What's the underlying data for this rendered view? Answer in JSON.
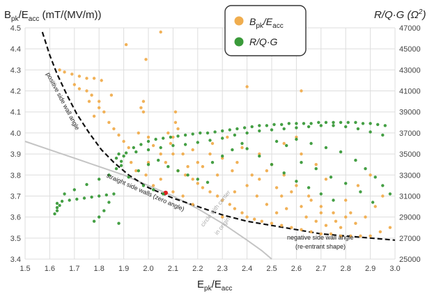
{
  "chart_data": {
    "type": "scatter",
    "title": "",
    "left_axis_label": "Bpk/Eacc (mT/(MV/m))",
    "left_axis_label_parts": [
      "B",
      "pk",
      "/E",
      "acc",
      " (mT/(MV/m))"
    ],
    "right_axis_label": "R/Q·G (Ω²)",
    "right_axis_label_parts": [
      "R/Q·G (Ω",
      "2",
      ")"
    ],
    "x_axis_label": "Epk/Eacc",
    "x_axis_label_parts": [
      "E",
      "pk",
      "/E",
      "acc"
    ],
    "xlim": [
      1.5,
      3.0
    ],
    "ylim_left": [
      3.4,
      4.5
    ],
    "ylim_right": [
      25000,
      47000
    ],
    "x_ticks": [
      "1.5",
      "1.6",
      "1.7",
      "1.8",
      "1.9",
      "2.0",
      "2.1",
      "2.2",
      "2.3",
      "2.4",
      "2.5",
      "2.6",
      "2.7",
      "2.8",
      "2.9",
      "3.0"
    ],
    "y_left_ticks": [
      "3.4",
      "3.5",
      "3.6",
      "3.7",
      "3.8",
      "3.9",
      "4.0",
      "4.1",
      "4.2",
      "4.3",
      "4.4",
      "4.5"
    ],
    "y_right_ticks": [
      "25000",
      "27000",
      "29000",
      "31000",
      "33000",
      "35000",
      "37000",
      "39000",
      "41000",
      "43000",
      "45000",
      "47000"
    ],
    "grid": true,
    "legend_position": "top-center",
    "colors": {
      "bpk": "#f0ad4e",
      "rqg": "#3a9a3a",
      "boundary": "#111111",
      "circle": "#c4c4c4",
      "grid": "#dddddd"
    },
    "series": [
      {
        "name": "Bpk/Eacc",
        "name_parts": [
          "B",
          "pk",
          "/E",
          "acc"
        ],
        "axis": "left",
        "color": "#f0ad4e",
        "points": [
          [
            1.64,
            4.3
          ],
          [
            1.66,
            4.29
          ],
          [
            1.69,
            4.28
          ],
          [
            1.72,
            4.27
          ],
          [
            1.75,
            4.26
          ],
          [
            1.78,
            4.26
          ],
          [
            1.81,
            4.25
          ],
          [
            1.7,
            4.23
          ],
          [
            1.72,
            4.21
          ],
          [
            1.75,
            4.2
          ],
          [
            1.77,
            4.18
          ],
          [
            1.8,
            4.15
          ],
          [
            1.82,
            4.1
          ],
          [
            1.84,
            4.05
          ],
          [
            1.86,
            4.02
          ],
          [
            1.88,
            3.99
          ],
          [
            1.9,
            3.96
          ],
          [
            1.92,
            3.93
          ],
          [
            1.96,
            4.0
          ],
          [
            1.98,
            4.15
          ],
          [
            1.97,
            4.12
          ],
          [
            1.98,
            4.1
          ],
          [
            2.0,
            3.98
          ],
          [
            2.02,
            3.94
          ],
          [
            2.05,
            3.9
          ],
          [
            2.07,
            3.86
          ],
          [
            2.1,
            3.9
          ],
          [
            2.11,
            4.05
          ],
          [
            2.11,
            4.1
          ],
          [
            2.12,
            4.02
          ],
          [
            2.1,
            3.98
          ],
          [
            2.08,
            4.0
          ],
          [
            2.09,
            3.95
          ],
          [
            2.12,
            3.82
          ],
          [
            2.15,
            3.8
          ],
          [
            2.18,
            3.78
          ],
          [
            2.2,
            3.76
          ],
          [
            2.22,
            3.74
          ],
          [
            2.25,
            3.72
          ],
          [
            2.28,
            3.7
          ],
          [
            2.3,
            3.68
          ],
          [
            2.33,
            3.66
          ],
          [
            2.35,
            3.64
          ],
          [
            2.38,
            3.62
          ],
          [
            2.4,
            3.6
          ],
          [
            2.43,
            3.59
          ],
          [
            2.46,
            3.58
          ],
          [
            2.5,
            3.57
          ],
          [
            2.54,
            3.56
          ],
          [
            2.58,
            3.55
          ],
          [
            2.62,
            3.54
          ],
          [
            2.66,
            3.53
          ],
          [
            2.7,
            3.52
          ],
          [
            2.74,
            3.52
          ],
          [
            2.78,
            3.51
          ],
          [
            2.82,
            3.51
          ],
          [
            2.86,
            3.51
          ],
          [
            2.9,
            3.51
          ],
          [
            2.94,
            3.53
          ],
          [
            2.98,
            3.55
          ],
          [
            2.45,
            3.9
          ],
          [
            2.5,
            3.85
          ],
          [
            2.55,
            3.8
          ],
          [
            2.6,
            3.75
          ],
          [
            2.65,
            3.7
          ],
          [
            2.7,
            3.65
          ],
          [
            2.75,
            3.62
          ],
          [
            2.8,
            3.6
          ],
          [
            2.55,
            3.95
          ],
          [
            2.6,
            3.98
          ],
          [
            2.62,
            3.9
          ],
          [
            2.68,
            3.85
          ],
          [
            2.72,
            3.78
          ],
          [
            2.4,
            3.75
          ],
          [
            2.42,
            3.8
          ],
          [
            2.36,
            3.86
          ],
          [
            2.3,
            3.88
          ],
          [
            2.25,
            3.9
          ],
          [
            2.2,
            3.86
          ],
          [
            2.16,
            3.84
          ],
          [
            2.14,
            3.9
          ],
          [
            2.05,
            3.78
          ],
          [
            2.02,
            3.75
          ],
          [
            1.99,
            3.8
          ],
          [
            1.95,
            3.82
          ],
          [
            1.93,
            3.86
          ],
          [
            2.0,
            3.86
          ],
          [
            2.26,
            3.95
          ],
          [
            2.32,
            3.98
          ],
          [
            2.38,
            3.93
          ],
          [
            2.44,
            3.7
          ],
          [
            2.48,
            3.66
          ],
          [
            2.52,
            3.62
          ],
          [
            2.56,
            3.64
          ],
          [
            2.64,
            3.6
          ],
          [
            2.68,
            3.58
          ],
          [
            2.72,
            3.56
          ],
          [
            2.76,
            3.58
          ],
          [
            2.84,
            3.57
          ],
          [
            2.88,
            3.6
          ],
          [
            2.92,
            3.65
          ],
          [
            2.95,
            3.7
          ],
          [
            2.05,
            4.48
          ],
          [
            1.91,
            4.42
          ],
          [
            2.62,
            4.2
          ],
          [
            2.4,
            4.22
          ],
          [
            1.99,
            4.35
          ],
          [
            1.76,
            4.15
          ],
          [
            1.8,
            4.12
          ],
          [
            1.78,
            4.08
          ],
          [
            1.85,
            4.18
          ],
          [
            2.3,
            3.6
          ],
          [
            2.35,
            3.72
          ],
          [
            2.45,
            3.78
          ],
          [
            2.58,
            3.72
          ],
          [
            2.66,
            3.68
          ],
          [
            2.8,
            3.68
          ],
          [
            2.85,
            3.75
          ],
          [
            2.9,
            3.8
          ],
          [
            2.18,
            3.92
          ],
          [
            2.22,
            3.84
          ],
          [
            2.28,
            3.8
          ],
          [
            2.34,
            3.82
          ],
          [
            2.1,
            3.72
          ],
          [
            2.14,
            3.7
          ],
          [
            2.18,
            3.66
          ],
          [
            2.48,
            3.82
          ],
          [
            2.52,
            3.74
          ],
          [
            2.54,
            3.7
          ],
          [
            2.62,
            3.65
          ],
          [
            2.7,
            3.62
          ],
          [
            2.78,
            3.55
          ],
          [
            2.82,
            3.62
          ]
        ]
      },
      {
        "name": "R/Q·G",
        "name_parts": [
          "R/Q·G"
        ],
        "axis": "right",
        "color": "#3a9a3a",
        "points": [
          [
            1.63,
            30300
          ],
          [
            1.65,
            30500
          ],
          [
            1.68,
            30600
          ],
          [
            1.71,
            30700
          ],
          [
            1.74,
            30800
          ],
          [
            1.77,
            30900
          ],
          [
            1.8,
            31000
          ],
          [
            1.83,
            31100
          ],
          [
            1.63,
            29600
          ],
          [
            1.63,
            29900
          ],
          [
            1.64,
            30100
          ],
          [
            1.62,
            29300
          ],
          [
            1.66,
            31200
          ],
          [
            1.7,
            31600
          ],
          [
            1.75,
            32100
          ],
          [
            1.8,
            32600
          ],
          [
            1.84,
            33000
          ],
          [
            1.87,
            33600
          ],
          [
            1.89,
            34300
          ],
          [
            1.91,
            35100
          ],
          [
            1.94,
            35600
          ],
          [
            1.97,
            35900
          ],
          [
            2.0,
            36200
          ],
          [
            2.03,
            36400
          ],
          [
            2.06,
            36500
          ],
          [
            2.09,
            36600
          ],
          [
            2.12,
            36700
          ],
          [
            2.15,
            36800
          ],
          [
            2.18,
            36900
          ],
          [
            2.21,
            37000
          ],
          [
            2.24,
            37000
          ],
          [
            2.27,
            37100
          ],
          [
            2.3,
            37200
          ],
          [
            2.33,
            37300
          ],
          [
            2.36,
            37400
          ],
          [
            2.39,
            37500
          ],
          [
            2.42,
            37600
          ],
          [
            2.45,
            37700
          ],
          [
            2.48,
            37700
          ],
          [
            2.51,
            37800
          ],
          [
            2.54,
            37800
          ],
          [
            2.57,
            37900
          ],
          [
            2.6,
            37900
          ],
          [
            2.63,
            37900
          ],
          [
            2.66,
            37900
          ],
          [
            2.69,
            38000
          ],
          [
            2.72,
            38000
          ],
          [
            2.75,
            38000
          ],
          [
            2.78,
            38000
          ],
          [
            2.81,
            38000
          ],
          [
            2.84,
            38000
          ],
          [
            2.87,
            37900
          ],
          [
            2.9,
            37900
          ],
          [
            2.93,
            37800
          ],
          [
            2.96,
            37700
          ],
          [
            1.9,
            34800
          ],
          [
            1.95,
            35200
          ],
          [
            2.0,
            35400
          ],
          [
            2.05,
            35600
          ],
          [
            2.1,
            35800
          ],
          [
            2.15,
            35900
          ],
          [
            2.2,
            36100
          ],
          [
            2.25,
            36300
          ],
          [
            2.3,
            36500
          ],
          [
            2.35,
            36800
          ],
          [
            2.4,
            37000
          ],
          [
            2.45,
            37200
          ],
          [
            2.5,
            37300
          ],
          [
            2.55,
            37400
          ],
          [
            2.6,
            37500
          ],
          [
            2.65,
            37600
          ],
          [
            2.7,
            37700
          ],
          [
            2.75,
            37700
          ],
          [
            2.8,
            37600
          ],
          [
            2.85,
            37400
          ],
          [
            2.9,
            37100
          ],
          [
            2.95,
            36800
          ],
          [
            2.4,
            35500
          ],
          [
            2.45,
            34800
          ],
          [
            2.5,
            34000
          ],
          [
            2.55,
            33200
          ],
          [
            2.6,
            32400
          ],
          [
            2.65,
            31800
          ],
          [
            2.7,
            31200
          ],
          [
            2.75,
            30600
          ],
          [
            1.92,
            32800
          ],
          [
            1.96,
            33400
          ],
          [
            2.0,
            34000
          ],
          [
            2.04,
            34400
          ],
          [
            2.08,
            33800
          ],
          [
            2.12,
            33400
          ],
          [
            2.16,
            33000
          ],
          [
            2.2,
            32600
          ],
          [
            2.24,
            32300
          ],
          [
            1.86,
            31200
          ],
          [
            1.84,
            30400
          ],
          [
            1.82,
            29600
          ],
          [
            1.8,
            29000
          ],
          [
            1.78,
            28600
          ],
          [
            1.88,
            28400
          ],
          [
            1.98,
            32000
          ],
          [
            2.02,
            31600
          ],
          [
            2.06,
            31200
          ],
          [
            2.26,
            34200
          ],
          [
            2.3,
            34800
          ],
          [
            2.34,
            35400
          ],
          [
            2.38,
            36000
          ],
          [
            2.6,
            36400
          ],
          [
            2.66,
            36000
          ],
          [
            2.72,
            35600
          ],
          [
            2.78,
            35200
          ],
          [
            2.84,
            34400
          ],
          [
            2.88,
            33600
          ],
          [
            2.92,
            32800
          ],
          [
            2.95,
            32000
          ],
          [
            2.98,
            31200
          ],
          [
            1.88,
            35000
          ],
          [
            1.87,
            34600
          ],
          [
            1.89,
            33900
          ],
          [
            2.52,
            36200
          ],
          [
            2.56,
            35800
          ],
          [
            2.62,
            34200
          ],
          [
            2.68,
            33600
          ],
          [
            2.74,
            32800
          ],
          [
            2.8,
            32200
          ],
          [
            2.86,
            31400
          ],
          [
            2.91,
            30400
          ]
        ]
      }
    ],
    "boundary_curve": {
      "points": [
        [
          1.57,
          4.48
        ],
        [
          1.6,
          4.37
        ],
        [
          1.63,
          4.28
        ],
        [
          1.67,
          4.18
        ],
        [
          1.71,
          4.09
        ],
        [
          1.76,
          4.0
        ],
        [
          1.81,
          3.92
        ],
        [
          1.86,
          3.86
        ],
        [
          1.92,
          3.8
        ],
        [
          2.0,
          3.74
        ],
        [
          2.1,
          3.69
        ],
        [
          2.2,
          3.65
        ],
        [
          2.3,
          3.61
        ],
        [
          2.4,
          3.58
        ],
        [
          2.5,
          3.56
        ],
        [
          2.6,
          3.54
        ],
        [
          2.7,
          3.52
        ],
        [
          2.8,
          3.51
        ],
        [
          2.9,
          3.5
        ],
        [
          3.0,
          3.49
        ]
      ],
      "labels": [
        "positive side wall angle",
        "straight side walls (zero angle)",
        "negative side wall angle",
        "(re-entrant shape)"
      ]
    },
    "circle_curve": {
      "points": [
        [
          1.5,
          3.96
        ],
        [
          1.6,
          3.92
        ],
        [
          1.7,
          3.88
        ],
        [
          1.8,
          3.84
        ],
        [
          1.9,
          3.8
        ],
        [
          2.0,
          3.75
        ],
        [
          2.1,
          3.7
        ],
        [
          2.2,
          3.64
        ],
        [
          2.3,
          3.57
        ],
        [
          2.4,
          3.49
        ],
        [
          2.46,
          3.44
        ],
        [
          2.5,
          3.4
        ]
      ],
      "labels": [
        "circle with center",
        "in origin"
      ]
    },
    "red_marker": [
      2.07,
      3.715
    ]
  }
}
